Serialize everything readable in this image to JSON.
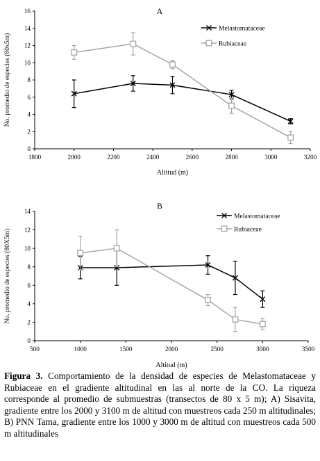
{
  "chart_data": [
    {
      "type": "line",
      "title": "A",
      "xlabel": "Altitud (m)",
      "ylabel": "No. promedio de especies (80x5m)",
      "xlim": [
        1800,
        3200
      ],
      "ylim": [
        0,
        16
      ],
      "xticks": [
        1800,
        2000,
        2200,
        2400,
        2600,
        2800,
        3000,
        3200
      ],
      "yticks": [
        0,
        2,
        4,
        6,
        8,
        10,
        12,
        14,
        16
      ],
      "legend_position": "top-right",
      "grid": false,
      "series": [
        {
          "name": "Melastomataceae",
          "marker": "x",
          "color": "#000000",
          "x": [
            2000,
            2300,
            2500,
            2800,
            3100
          ],
          "y": [
            6.4,
            7.6,
            7.4,
            6.3,
            3.2
          ],
          "err": [
            1.6,
            0.9,
            1.0,
            0.5,
            0.3
          ]
        },
        {
          "name": "Rubiaceae",
          "marker": "square",
          "color": "#a6a6a6",
          "x": [
            2000,
            2300,
            2500,
            2800,
            3100
          ],
          "y": [
            11.2,
            12.2,
            9.8,
            5.0,
            1.3
          ],
          "err": [
            0.8,
            1.3,
            0.5,
            0.9,
            0.7
          ]
        }
      ]
    },
    {
      "type": "line",
      "title": "B",
      "xlabel": "Altitud (m)",
      "ylabel": "No. promedio de especies (80X5m)",
      "xlim": [
        500,
        3500
      ],
      "ylim": [
        0,
        14
      ],
      "xticks": [
        500,
        1000,
        1500,
        2000,
        2500,
        3000,
        3500
      ],
      "yticks": [
        0,
        2,
        4,
        6,
        8,
        10,
        12,
        14
      ],
      "legend_position": "top-right",
      "grid": false,
      "series": [
        {
          "name": "Melastomataceae",
          "marker": "x",
          "color": "#000000",
          "x": [
            1000,
            1400,
            2400,
            2700,
            3000
          ],
          "y": [
            7.9,
            7.9,
            8.2,
            6.8,
            4.5
          ],
          "err": [
            1.2,
            1.9,
            1.0,
            1.8,
            0.9
          ]
        },
        {
          "name": "Rubiaceae",
          "marker": "square",
          "color": "#a6a6a6",
          "x": [
            1000,
            1400,
            2400,
            2700,
            3000
          ],
          "y": [
            9.5,
            10.0,
            4.4,
            2.3,
            1.8
          ],
          "err": [
            1.8,
            2.0,
            0.6,
            1.3,
            0.6
          ]
        }
      ]
    }
  ],
  "caption": {
    "label": "Figura 3.",
    "text": " Comportamiento de la densidad de especies de Melastomataceae y Rubiaceae en el gradiente altitudinal en las al norte de la CO. La riqueza corresponde al promedio de submuestras (transectos de 80 x 5 m); A) Sisavita, gradiente entre los 2000 y 3100 m de altitud con muestreos cada 250 m altitudinales; B) PNN Tama, gradiente entre los 1000 y 3000 m de altitud con muestreos cada 500 m altitudinales"
  }
}
